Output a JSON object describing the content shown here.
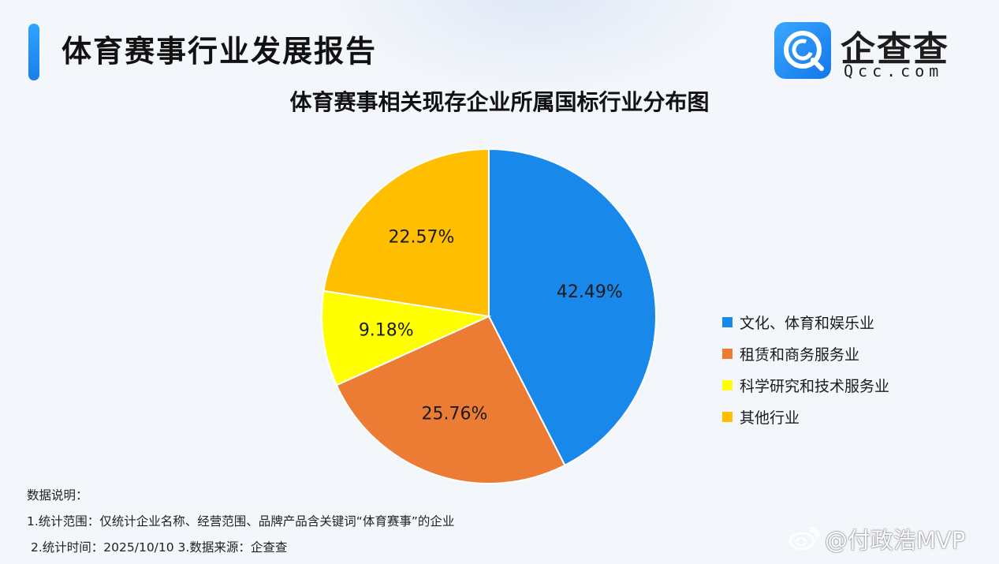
{
  "header": {
    "report_title": "体育赛事行业发展报告"
  },
  "logo": {
    "cn": "企查查",
    "en": "Qcc.com"
  },
  "colors": {
    "accent": "#1a8cf0",
    "series": [
      "#1888ea",
      "#ec7c33",
      "#ffff00",
      "#ffbf00"
    ]
  },
  "chart_data": {
    "type": "pie",
    "title": "体育赛事相关现存企业所属国标行业分布图",
    "categories": [
      "文化、体育和娱乐业",
      "租赁和商务服务业",
      "科学研究和技术服务业",
      "其他行业"
    ],
    "values": [
      42.49,
      25.76,
      9.18,
      22.57
    ],
    "data_labels": [
      "42.49%",
      "25.76%",
      "9.18%",
      "22.57%"
    ],
    "legend_position": "right"
  },
  "notes": {
    "heading": "数据说明：",
    "line1": "1.统计范围：仅统计企业名称、经营范围、品牌产品含关键词“体育赛事”的企业",
    "line2": "2.统计时间：2025/10/10  3.数据来源：企查查"
  },
  "watermark": {
    "text": "@付政浩MVP",
    "icon": "weibo-icon"
  }
}
